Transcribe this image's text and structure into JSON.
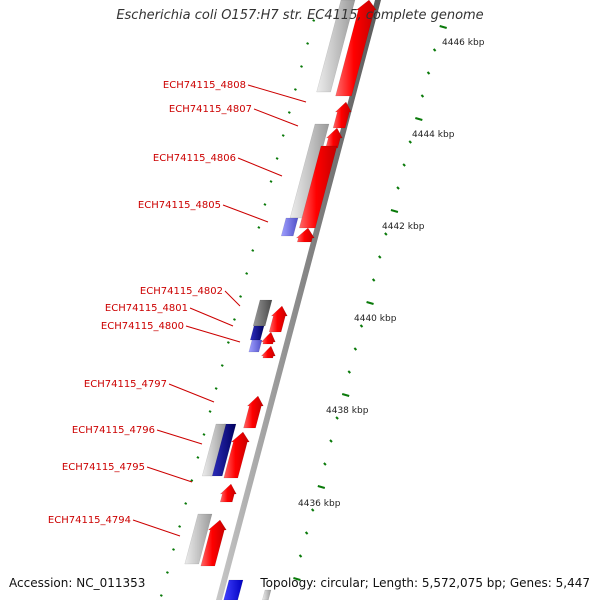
{
  "title": "Escherichia coli O157:H7 str. EC4115, complete genome",
  "accession": "Accession: NC_011353",
  "summary": "Topology: circular; Length: 5,572,075 bp; Genes: 5,447",
  "colors": {
    "forward_gene": "#ff0000",
    "gray_gene": "#b4b4b4",
    "blue_gene": "#6666cc",
    "dark_blue_gene": "#000080",
    "backbone": "#808080",
    "tick_green": "#0a7a0a",
    "label_red": "#cc0000"
  },
  "scale_labels": [
    {
      "text": "4446 kbp"
    },
    {
      "text": "4444 kbp"
    },
    {
      "text": "4442 kbp"
    },
    {
      "text": "4440 kbp"
    },
    {
      "text": "4438 kbp"
    },
    {
      "text": "4436 kbp"
    }
  ],
  "gene_labels": [
    {
      "text": "ECH74115_4808"
    },
    {
      "text": "ECH74115_4807"
    },
    {
      "text": "ECH74115_4806"
    },
    {
      "text": "ECH74115_4805"
    },
    {
      "text": "ECH74115_4802"
    },
    {
      "text": "ECH74115_4801"
    },
    {
      "text": "ECH74115_4800"
    },
    {
      "text": "ECH74115_4797"
    },
    {
      "text": "ECH74115_4796"
    },
    {
      "text": "ECH74115_4795"
    },
    {
      "text": "ECH74115_4794"
    }
  ]
}
